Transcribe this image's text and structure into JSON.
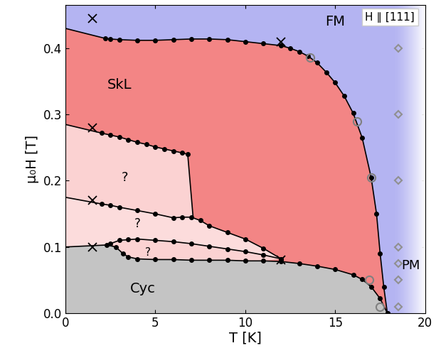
{
  "chart_data": {
    "type": "line",
    "xlabel": "T [K]",
    "ylabel": "μ₀H [T]",
    "xlim": [
      0,
      20
    ],
    "xticks": [
      0,
      5,
      10,
      15,
      20
    ],
    "ylim": [
      0,
      0.465
    ],
    "yticks": [
      0.0,
      0.1,
      0.2,
      0.3,
      0.4
    ],
    "grid": false,
    "annotations": [
      "FM",
      "SkL",
      "?",
      "?",
      "?",
      "Cyc",
      "PM",
      "H ∥ [111]"
    ],
    "series": [
      {
        "type": "area",
        "color": "#b4b4f2",
        "x": [
          0,
          20,
          20,
          0
        ],
        "values": [
          0,
          0,
          0.465,
          0.465
        ]
      },
      {
        "type": "area",
        "color": "#f38585",
        "x": [
          0,
          2.2,
          2.5,
          3,
          4,
          5,
          6,
          7,
          8,
          9,
          10,
          11,
          12,
          12.5,
          13,
          13.5,
          14,
          14.5,
          15,
          15.5,
          16,
          16.5,
          17,
          17.3,
          17.5,
          17.7,
          17.9,
          0
        ],
        "values": [
          0.43,
          0.415,
          0.414,
          0.413,
          0.412,
          0.412,
          0.413,
          0.414,
          0.414,
          0.413,
          0.41,
          0.407,
          0.404,
          0.4,
          0.395,
          0.388,
          0.378,
          0.364,
          0.348,
          0.328,
          0.302,
          0.265,
          0.205,
          0.15,
          0.09,
          0.04,
          0.0,
          0.0
        ]
      },
      {
        "type": "area",
        "color": "#c4c4c4",
        "x": [
          0,
          2.3,
          2.8,
          3.2,
          3.5,
          4,
          5,
          6,
          7,
          8,
          9,
          10,
          11,
          12,
          13,
          14,
          15,
          16,
          16.5,
          17,
          17.5,
          17.9,
          0
        ],
        "values": [
          0.1,
          0.103,
          0.1,
          0.09,
          0.085,
          0.082,
          0.081,
          0.081,
          0.08,
          0.08,
          0.08,
          0.079,
          0.079,
          0.078,
          0.075,
          0.071,
          0.066,
          0.058,
          0.051,
          0.04,
          0.022,
          0.0,
          0.0
        ]
      },
      {
        "type": "area",
        "color": "#fbd2d2",
        "x": [
          0,
          2,
          2.5,
          3,
          3.5,
          4,
          4.5,
          5,
          5.5,
          6,
          6.5,
          6.8,
          7.1,
          7,
          6.5,
          6,
          5,
          4,
          3,
          2.5,
          2,
          0
        ],
        "values": [
          0.285,
          0.272,
          0.269,
          0.266,
          0.262,
          0.258,
          0.255,
          0.251,
          0.248,
          0.245,
          0.242,
          0.24,
          0.145,
          0.145,
          0.145,
          0.144,
          0.15,
          0.155,
          0.16,
          0.163,
          0.165,
          0.175
        ]
      },
      {
        "type": "area",
        "color": "#fcdcdc",
        "x": [
          0,
          2,
          2.5,
          3,
          4,
          5,
          6,
          6.5,
          7,
          7.5,
          8,
          9,
          10,
          11,
          12,
          11,
          10,
          9,
          8,
          7,
          6,
          5,
          4,
          3.5,
          3,
          2.5,
          2.3,
          0
        ],
        "values": [
          0.175,
          0.165,
          0.163,
          0.16,
          0.155,
          0.15,
          0.144,
          0.145,
          0.145,
          0.14,
          0.132,
          0.122,
          0.112,
          0.098,
          0.082,
          0.088,
          0.093,
          0.097,
          0.101,
          0.105,
          0.108,
          0.11,
          0.112,
          0.111,
          0.11,
          0.105,
          0.103,
          0.1
        ]
      },
      {
        "type": "area",
        "color": "#fbd2d2",
        "x": [
          2.5,
          3,
          3.5,
          4,
          5,
          6,
          7,
          8,
          9,
          10,
          11,
          12,
          11,
          10,
          9,
          8,
          7,
          6,
          5,
          4,
          3.5,
          3.2,
          2.8
        ],
        "values": [
          0.105,
          0.11,
          0.111,
          0.112,
          0.11,
          0.108,
          0.105,
          0.101,
          0.097,
          0.093,
          0.088,
          0.082,
          0.079,
          0.079,
          0.08,
          0.08,
          0.08,
          0.081,
          0.081,
          0.082,
          0.085,
          0.09,
          0.1
        ]
      },
      {
        "type": "line",
        "color": "#000000",
        "marker": "none",
        "line_style": "solid",
        "x": [
          0,
          2.2
        ],
        "values": [
          0.43,
          0.415
        ]
      },
      {
        "type": "line",
        "color": "#000000",
        "marker": "circle",
        "line_style": "solid",
        "x": [
          2.2,
          2.5,
          3,
          4,
          5,
          6,
          7,
          8,
          9,
          10,
          11,
          12,
          12.5,
          13,
          13.5,
          14,
          14.5,
          15,
          15.5,
          16,
          16.5,
          17,
          17.3,
          17.5,
          17.7,
          17.9
        ],
        "values": [
          0.415,
          0.414,
          0.413,
          0.412,
          0.412,
          0.413,
          0.414,
          0.414,
          0.413,
          0.41,
          0.407,
          0.404,
          0.4,
          0.395,
          0.388,
          0.378,
          0.364,
          0.348,
          0.328,
          0.302,
          0.265,
          0.205,
          0.15,
          0.09,
          0.04,
          0.0
        ]
      },
      {
        "type": "line",
        "color": "#000000",
        "marker": "none",
        "line_style": "solid",
        "x": [
          0,
          2
        ],
        "values": [
          0.285,
          0.272
        ]
      },
      {
        "type": "line",
        "color": "#000000",
        "marker": "circle",
        "line_style": "solid",
        "x": [
          2,
          2.5,
          3,
          3.5,
          4,
          4.5,
          5,
          5.5,
          6,
          6.5,
          6.8
        ],
        "values": [
          0.272,
          0.269,
          0.266,
          0.262,
          0.258,
          0.255,
          0.251,
          0.248,
          0.245,
          0.242,
          0.24
        ]
      },
      {
        "type": "line",
        "color": "#000000",
        "marker": "none",
        "line_style": "solid",
        "x": [
          6.8,
          7.1
        ],
        "values": [
          0.24,
          0.145
        ]
      },
      {
        "type": "line",
        "color": "#000000",
        "marker": "none",
        "line_style": "solid",
        "x": [
          0,
          2
        ],
        "values": [
          0.175,
          0.165
        ]
      },
      {
        "type": "line",
        "color": "#000000",
        "marker": "circle",
        "line_style": "solid",
        "x": [
          2,
          2.5,
          3,
          4,
          5,
          6,
          6.5,
          7,
          7.5,
          8,
          9,
          10,
          11,
          12
        ],
        "values": [
          0.165,
          0.163,
          0.16,
          0.155,
          0.15,
          0.144,
          0.145,
          0.145,
          0.14,
          0.132,
          0.122,
          0.112,
          0.098,
          0.082
        ]
      },
      {
        "type": "line",
        "color": "#000000",
        "marker": "circle",
        "line_style": "solid",
        "x": [
          2.5,
          3,
          3.5,
          4,
          5,
          6,
          7,
          8,
          9,
          10,
          11,
          12
        ],
        "values": [
          0.105,
          0.11,
          0.111,
          0.112,
          0.11,
          0.108,
          0.105,
          0.101,
          0.097,
          0.093,
          0.088,
          0.082
        ]
      },
      {
        "type": "line",
        "color": "#000000",
        "marker": "none",
        "line_style": "solid",
        "x": [
          0,
          2.3
        ],
        "values": [
          0.1,
          0.103
        ]
      },
      {
        "type": "line",
        "color": "#000000",
        "marker": "circle",
        "line_style": "solid",
        "x": [
          2.3,
          2.8,
          3.2,
          3.5,
          4,
          5,
          6,
          7,
          8,
          9,
          10,
          11,
          12,
          13,
          14,
          15,
          16,
          16.5,
          17,
          17.5,
          17.9
        ],
        "values": [
          0.103,
          0.1,
          0.09,
          0.085,
          0.082,
          0.081,
          0.081,
          0.08,
          0.08,
          0.08,
          0.079,
          0.079,
          0.078,
          0.075,
          0.071,
          0.066,
          0.058,
          0.051,
          0.04,
          0.022,
          0.0
        ]
      },
      {
        "type": "scatter",
        "color": "#000000",
        "marker": "cross",
        "line_style": "none",
        "x": [
          1.5,
          12,
          1.5,
          1.5,
          1.5,
          12
        ],
        "values": [
          0.445,
          0.41,
          0.28,
          0.17,
          0.1,
          0.08
        ]
      },
      {
        "type": "scatter",
        "color": "#808080",
        "marker": "circle",
        "line_style": "none",
        "x": [
          13.6,
          16.2,
          17,
          16.9,
          17.5
        ],
        "values": [
          0.386,
          0.29,
          0.205,
          0.05,
          0.01
        ]
      },
      {
        "type": "scatter",
        "color": "#909090",
        "marker": "diamond",
        "line_style": "none",
        "x": [
          18.5,
          18.5,
          18.5,
          18.5,
          18.5,
          18.5,
          18.5
        ],
        "values": [
          0.4,
          0.3,
          0.2,
          0.1,
          0.075,
          0.05,
          0.01
        ]
      }
    ]
  }
}
